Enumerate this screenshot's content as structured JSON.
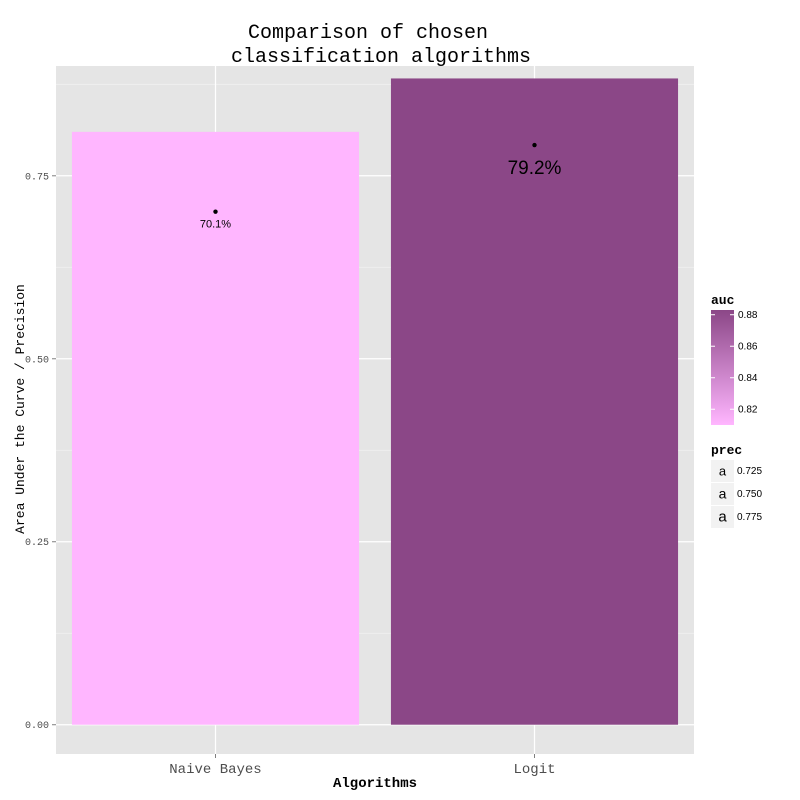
{
  "chart_data": {
    "type": "bar",
    "title_lines": [
      "Comparison of chosen",
      "classification algorithms"
    ],
    "xlabel": "Algorithms",
    "ylabel": "Area Under the Curve / Precision",
    "categories": [
      "Naive Bayes",
      "Logit"
    ],
    "values": [
      0.81,
      0.883
    ],
    "precision": [
      0.701,
      0.792
    ],
    "point_labels": [
      "70.1%",
      "79.2%"
    ],
    "ylim": [
      -0.04,
      0.9
    ],
    "yticks": [
      0.0,
      0.25,
      0.5,
      0.75
    ],
    "ytick_labels": [
      "0.00",
      "0.25",
      "0.50",
      "0.75"
    ],
    "grid": true,
    "bar_colors": [
      "#ffb6ff",
      "#8b4787"
    ],
    "legend_position": "right",
    "legend_auc": {
      "title": "auc",
      "tick_values": [
        0.82,
        0.84,
        0.86,
        0.88
      ],
      "tick_labels": [
        "0.82",
        "0.84",
        "0.86",
        "0.88"
      ],
      "range": [
        0.81,
        0.883
      ],
      "color_low": "#ffb6ff",
      "color_high": "#8b4787"
    },
    "legend_prec": {
      "title": "prec",
      "glyph": "a",
      "labels": [
        "0.725",
        "0.750",
        "0.775"
      ]
    }
  }
}
